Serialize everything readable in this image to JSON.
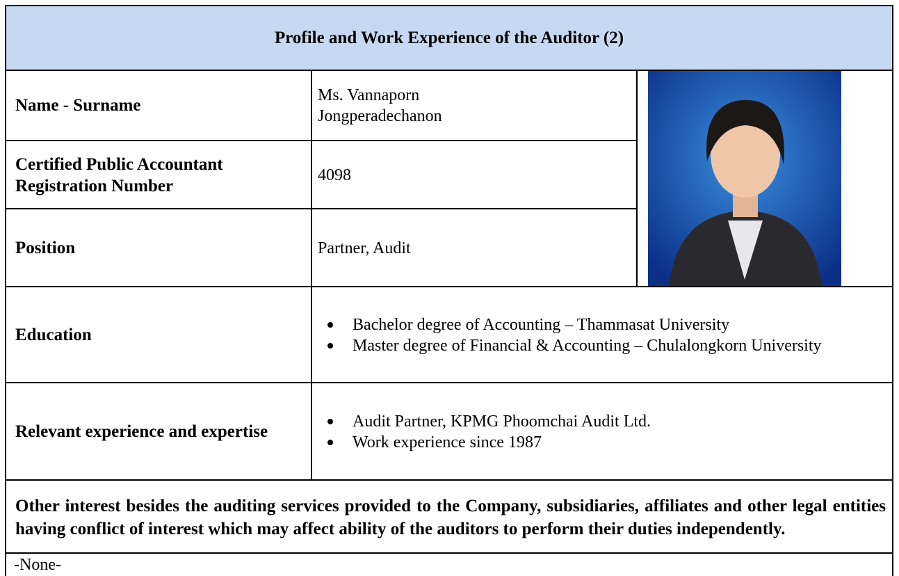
{
  "header": {
    "title": "Profile and Work Experience of the Auditor (2)"
  },
  "rows": [
    {
      "label": "Name - Surname",
      "value": "Ms. Vannaporn Jongperadechanon"
    },
    {
      "label": "Certified Public Accountant Registration Number",
      "value": "4098"
    },
    {
      "label": "Position",
      "value": "Partner, Audit"
    },
    {
      "label": "Education",
      "items": [
        "Bachelor degree of Accounting – Thammasat University",
        "Master degree of Financial & Accounting – Chulalongkorn University"
      ]
    },
    {
      "label": "Relevant experience and expertise",
      "items": [
        "Audit Partner, KPMG Phoomchai Audit Ltd.",
        "Work experience since 1987"
      ]
    }
  ],
  "conflict": {
    "question": "Other interest besides the auditing services provided to the Company, subsidiaries, affiliates and other legal entities having conflict of interest which may affect ability of the auditors to perform their duties independently.",
    "answer": "-None-"
  }
}
